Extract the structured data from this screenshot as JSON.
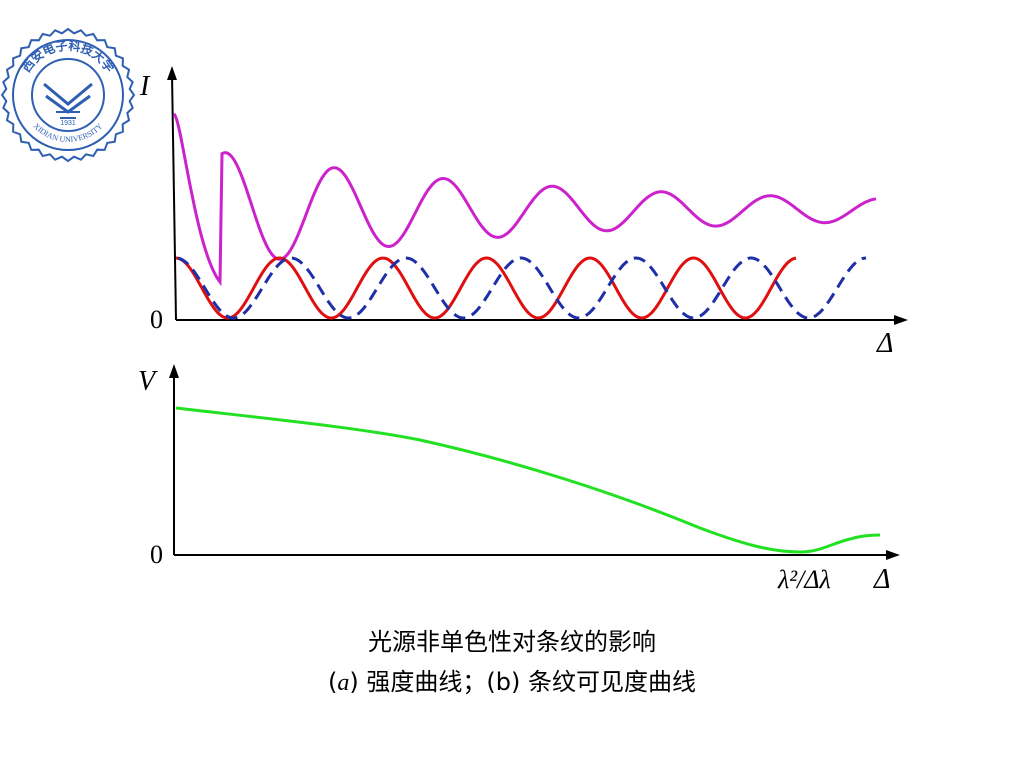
{
  "logo": {
    "text_top": "西安电子科技大学",
    "text_bottom": "XIDIAN UNIVERSITY",
    "year": "1931",
    "color": "#2f5fb3"
  },
  "colors": {
    "intensity_total": "#cc22cc",
    "component_1": "#e01010",
    "component_2": "#1f2fa8",
    "visibility": "#22e022",
    "axis": "#000000"
  },
  "chart_data": [
    {
      "panel": "a",
      "type": "line",
      "ylabel": "I",
      "xlabel": "Δ",
      "origin_label": "0",
      "grid": false,
      "series": [
        {
          "style": "solid",
          "shape": "damped oscillation approaching a constant (sum of two fringe systems)"
        },
        {
          "style": "solid",
          "shape": "cosine fringes, period 1"
        },
        {
          "style": "dashed",
          "shape": "cosine fringes, slightly different period"
        }
      ]
    },
    {
      "panel": "b",
      "type": "line",
      "ylabel": "V",
      "xlabel": "Δ",
      "origin_label": "0",
      "x_marker": "λ²/Δλ",
      "grid": false,
      "series": [
        {
          "style": "solid",
          "shape": "visibility decreasing from maximum to zero near λ²/Δλ, then slight rise"
        }
      ]
    }
  ],
  "caption": {
    "line1": "光源非单色性对条纹的影响",
    "line2_prefix": "(",
    "line2_a": "a",
    "line2_rest": ") 强度曲线；(b) 条纹可见度曲线"
  }
}
